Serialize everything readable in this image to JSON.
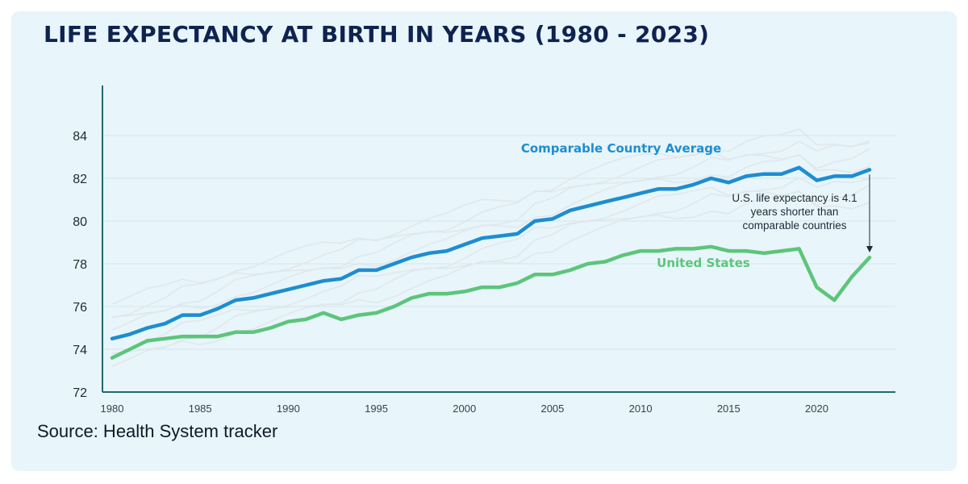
{
  "title": "LIFE EXPECTANCY AT BIRTH IN YEARS (1980 - 2023)",
  "source": "Source: Health System tracker",
  "colors": {
    "comparable": "#1d8dd1",
    "us": "#5cc57a",
    "axis": "#1f6b70",
    "grid": "#d4e6ec",
    "background": "#e8f5fa"
  },
  "chart_data": {
    "type": "line",
    "title": "LIFE EXPECTANCY AT BIRTH IN YEARS (1980 - 2023)",
    "xlabel": "",
    "ylabel": "",
    "xlim": [
      1980,
      2023
    ],
    "ylim": [
      72,
      86
    ],
    "y_ticks": [
      72,
      74,
      76,
      78,
      80,
      82,
      84
    ],
    "x_ticks": [
      1980,
      1985,
      1990,
      1995,
      2000,
      2005,
      2010,
      2015,
      2020
    ],
    "grid": true,
    "x": [
      1980,
      1981,
      1982,
      1983,
      1984,
      1985,
      1986,
      1987,
      1988,
      1989,
      1990,
      1991,
      1992,
      1993,
      1994,
      1995,
      1996,
      1997,
      1998,
      1999,
      2000,
      2001,
      2002,
      2003,
      2004,
      2005,
      2006,
      2007,
      2008,
      2009,
      2010,
      2011,
      2012,
      2013,
      2014,
      2015,
      2016,
      2017,
      2018,
      2019,
      2020,
      2021,
      2022,
      2023
    ],
    "series": [
      {
        "name": "Comparable Country Average",
        "color": "#1d8dd1",
        "values": [
          74.5,
          74.7,
          75.0,
          75.2,
          75.6,
          75.6,
          75.9,
          76.3,
          76.4,
          76.6,
          76.8,
          77.0,
          77.2,
          77.3,
          77.7,
          77.7,
          78.0,
          78.3,
          78.5,
          78.6,
          78.9,
          79.2,
          79.3,
          79.4,
          80.0,
          80.1,
          80.5,
          80.7,
          80.9,
          81.1,
          81.3,
          81.5,
          81.5,
          81.7,
          82.0,
          81.8,
          82.1,
          82.2,
          82.2,
          82.5,
          81.9,
          82.1,
          82.1,
          82.4
        ]
      },
      {
        "name": "United States",
        "color": "#5cc57a",
        "values": [
          73.6,
          74.0,
          74.4,
          74.5,
          74.6,
          74.6,
          74.6,
          74.8,
          74.8,
          75.0,
          75.3,
          75.4,
          75.7,
          75.4,
          75.6,
          75.7,
          76.0,
          76.4,
          76.6,
          76.6,
          76.7,
          76.9,
          76.9,
          77.1,
          77.5,
          77.5,
          77.7,
          78.0,
          78.1,
          78.4,
          78.6,
          78.6,
          78.7,
          78.7,
          78.8,
          78.6,
          78.6,
          78.5,
          78.6,
          78.7,
          76.9,
          76.3,
          77.4,
          78.3
        ]
      }
    ],
    "annotations": [
      {
        "year": 2023,
        "lines": [
          "U.S. life expectancy is 4.1",
          "years shorter than",
          "comparable countries"
        ]
      }
    ]
  }
}
